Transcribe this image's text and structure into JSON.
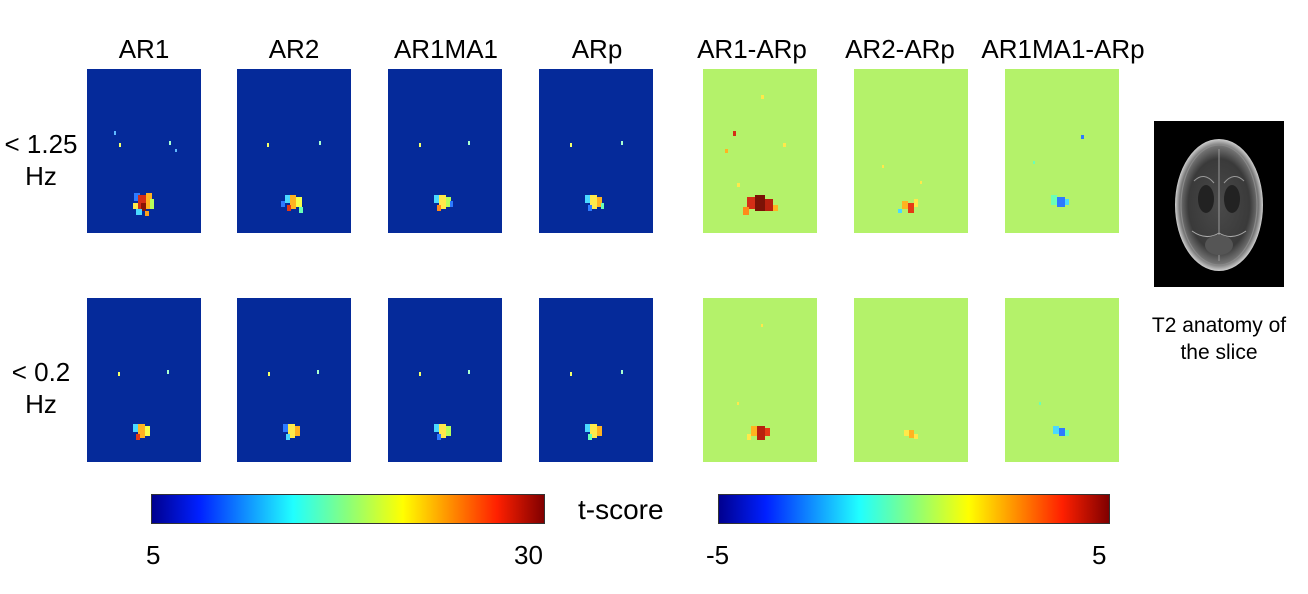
{
  "columns": [
    "AR1",
    "AR2",
    "AR1MA1",
    "ARp",
    "AR1-ARp",
    "AR2-ARp",
    "AR1MA1-ARp"
  ],
  "rows": [
    {
      "line1": "< 1.25",
      "line2": "Hz"
    },
    {
      "line1": "< 0.2",
      "line2": "Hz"
    }
  ],
  "colorbar_left": {
    "min": "5",
    "max": "30"
  },
  "colorbar_title": "t-score",
  "colorbar_right": {
    "min": "-5",
    "max": "5"
  },
  "anatomy_caption": {
    "line1": "T2 anatomy of",
    "line2": "the slice"
  },
  "colors": {
    "background_blue": "#052a9a",
    "background_green": "#b4f26a"
  }
}
